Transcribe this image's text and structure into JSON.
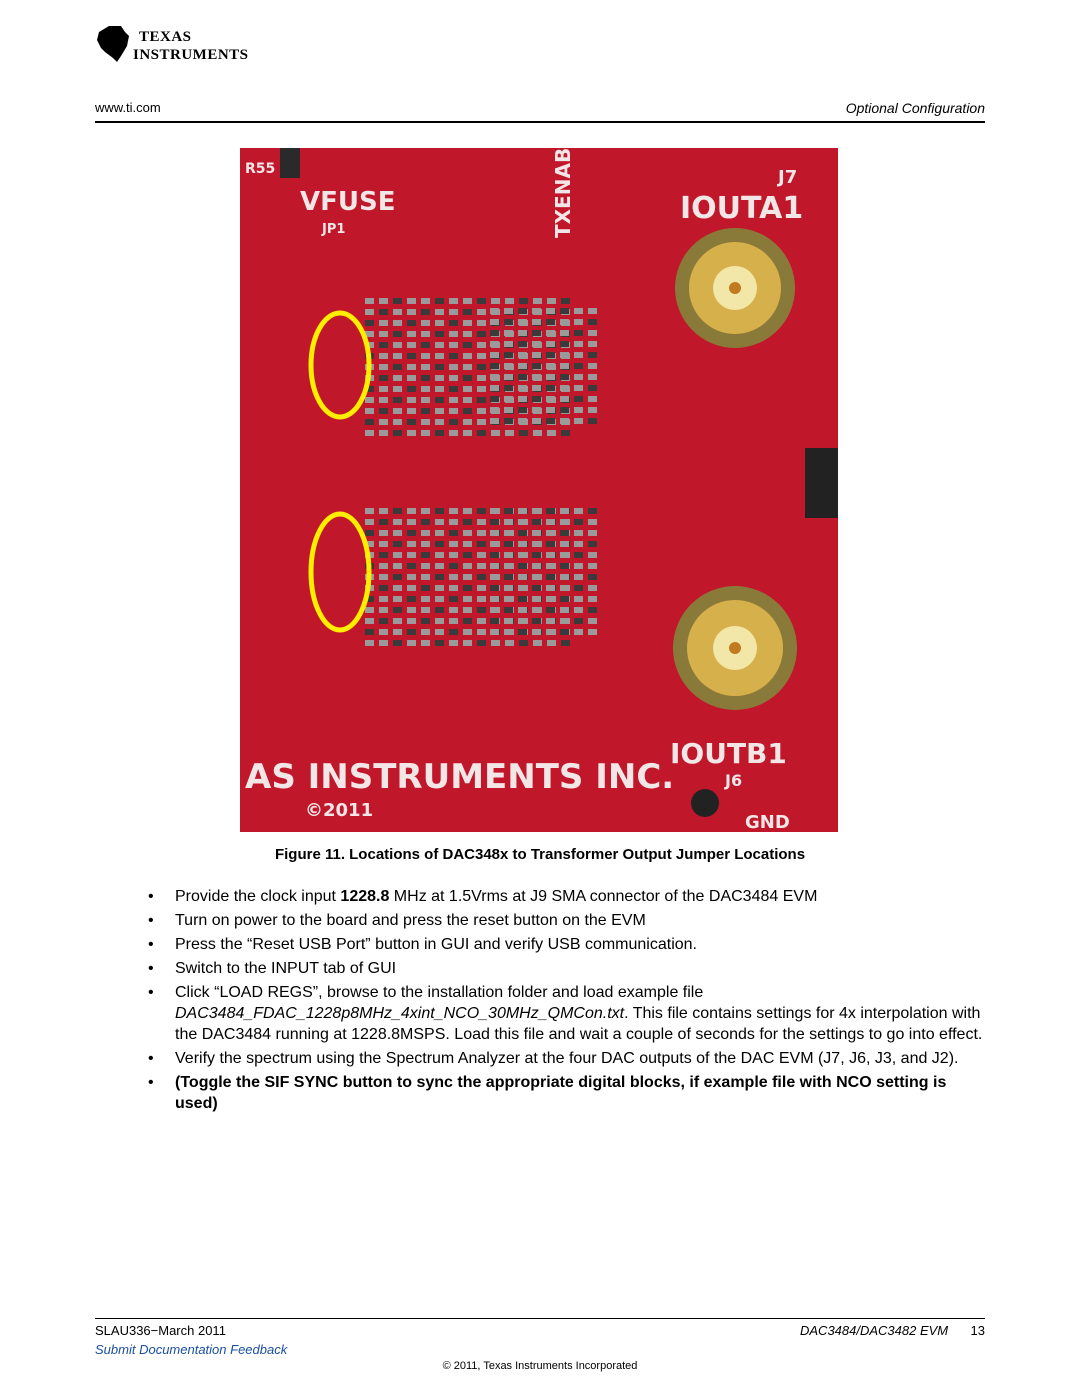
{
  "header": {
    "logo_line1": "Texas",
    "logo_line2": "Instruments",
    "site": "www.ti.com",
    "section": "Optional Configuration"
  },
  "figure": {
    "silkscreen": {
      "vfuse": "VFUSE",
      "jp1": "JP1",
      "j7": "J7",
      "ioutap": "IOUTA1",
      "ioutbp": "IOUTB1",
      "j6": "J6",
      "company": "AS INSTRUMENTS INC.",
      "copyright": "©2011",
      "gnd": "GND",
      "txenable": "TXENABL",
      "r55": "R55"
    },
    "caption": "Figure 11. Locations of DAC348x to Transformer Output Jumper Locations"
  },
  "bullets": [
    {
      "before": "Provide the clock input ",
      "bold": "1228.8",
      "after": " MHz at 1.5Vrms at J9 SMA connector of the DAC3484 EVM"
    },
    {
      "before": "Turn on power to the board and press the reset button on the EVM"
    },
    {
      "before": "Press the “Reset USB Port” button in GUI and verify USB communication."
    },
    {
      "before": "Switch to the INPUT tab of GUI"
    },
    {
      "before": "Click “LOAD REGS”, browse to the installation folder and load example file",
      "italic": "DAC3484_FDAC_1228p8MHz_4xint_NCO_30MHz_QMCon.txt",
      "after": ". This file contains settings for 4x interpolation with the DAC3484 running at 1228.8MSPS. Load this file and wait a couple of seconds for the settings to go into effect."
    },
    {
      "before": "Verify the spectrum using the Spectrum Analyzer at the four DAC outputs of the DAC EVM (J7, J6, J3, and J2)."
    },
    {
      "bold": "(Toggle the SIF SYNC button to sync the appropriate digital blocks, if example file with NCO setting is used)"
    }
  ],
  "footer": {
    "doc_id": "SLAU336−March 2011",
    "doc_title": "DAC3484/DAC3482 EVM",
    "page": "13",
    "feedback": "Submit Documentation Feedback",
    "copyright": "© 2011, Texas Instruments Incorporated"
  }
}
